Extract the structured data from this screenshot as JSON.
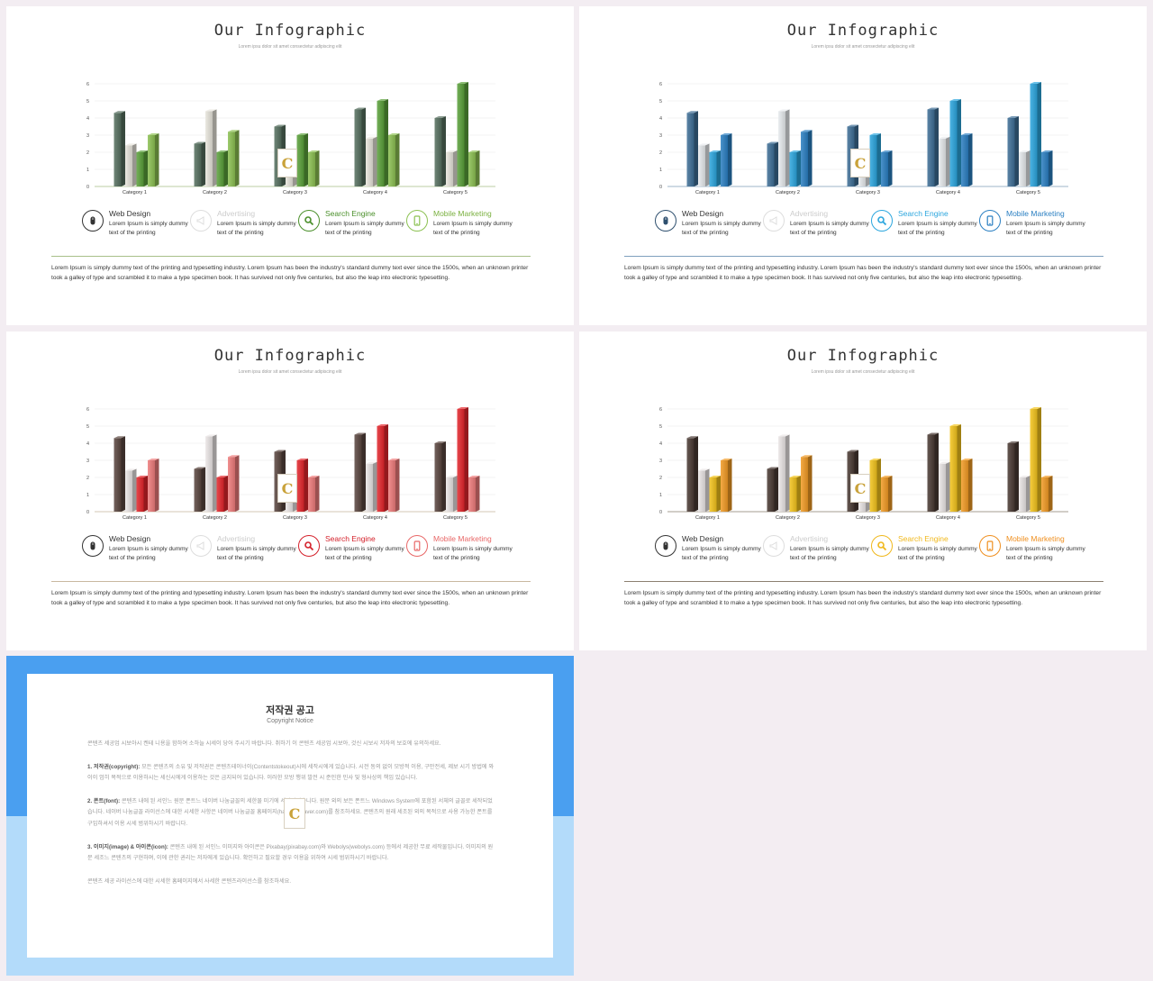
{
  "colors": {
    "page_bg": "#f3edf2",
    "copyright_top": "#4a9ff0",
    "copyright_bottom": "#b3dbfa"
  },
  "chart_data": [
    {
      "type": "bar",
      "categories": [
        "Category 1",
        "Category 2",
        "Category 3",
        "Category 4",
        "Category 5"
      ],
      "ylim": [
        0,
        6
      ],
      "yticks": [
        "0",
        "1",
        "2",
        "3",
        "4",
        "5",
        "6"
      ],
      "series": [
        {
          "values": [
            4.3,
            2.5,
            3.5,
            4.5,
            4.0
          ]
        },
        {
          "values": [
            2.4,
            4.4,
            1.8,
            2.8,
            2.0
          ]
        },
        {
          "values": [
            2.0,
            2.0,
            3.0,
            5.0,
            6.0
          ]
        },
        {
          "values": [
            3.0,
            3.2,
            2.0,
            3.0,
            2.0
          ]
        }
      ],
      "grid": true
    },
    {
      "type": "bar",
      "categories": [
        "Category 1",
        "Category 2",
        "Category 3",
        "Category 4",
        "Category 5"
      ],
      "ylim": [
        0,
        6
      ],
      "yticks": [
        "0",
        "1",
        "2",
        "3",
        "4",
        "5",
        "6"
      ],
      "series": [
        {
          "values": [
            4.3,
            2.5,
            3.5,
            4.5,
            4.0
          ]
        },
        {
          "values": [
            2.4,
            4.4,
            1.8,
            2.8,
            2.0
          ]
        },
        {
          "values": [
            2.0,
            2.0,
            3.0,
            5.0,
            6.0
          ]
        },
        {
          "values": [
            3.0,
            3.2,
            2.0,
            3.0,
            2.0
          ]
        }
      ],
      "grid": true
    },
    {
      "type": "bar",
      "categories": [
        "Category 1",
        "Category 2",
        "Category 3",
        "Category 4",
        "Category 5"
      ],
      "ylim": [
        0,
        6
      ],
      "yticks": [
        "0",
        "1",
        "2",
        "3",
        "4",
        "5",
        "6"
      ],
      "series": [
        {
          "values": [
            4.3,
            2.5,
            3.5,
            4.5,
            4.0
          ]
        },
        {
          "values": [
            2.4,
            4.4,
            1.8,
            2.8,
            2.0
          ]
        },
        {
          "values": [
            2.0,
            2.0,
            3.0,
            5.0,
            6.0
          ]
        },
        {
          "values": [
            3.0,
            3.2,
            2.0,
            3.0,
            2.0
          ]
        }
      ],
      "grid": true
    },
    {
      "type": "bar",
      "categories": [
        "Category 1",
        "Category 2",
        "Category 3",
        "Category 4",
        "Category 5"
      ],
      "ylim": [
        0,
        6
      ],
      "yticks": [
        "0",
        "1",
        "2",
        "3",
        "4",
        "5",
        "6"
      ],
      "series": [
        {
          "values": [
            4.3,
            2.5,
            3.5,
            4.5,
            4.0
          ]
        },
        {
          "values": [
            2.4,
            4.4,
            1.8,
            2.8,
            2.0
          ]
        },
        {
          "values": [
            2.0,
            2.0,
            3.0,
            5.0,
            6.0
          ]
        },
        {
          "values": [
            3.0,
            3.2,
            2.0,
            3.0,
            2.0
          ]
        }
      ],
      "grid": true
    }
  ],
  "slides": [
    {
      "title": "Our Infographic",
      "subtitle": "Lorem ipsu dolor sit amet consectetur adipiscing elit",
      "theme": {
        "name": "green",
        "c1": "#56705f",
        "c2": "#e8e5dc",
        "c3": "#5aa13a",
        "c4": "#8cc152",
        "divider": "#a8c089"
      },
      "legend": [
        {
          "title": "Web Design",
          "desc": "Lorem Ipsum is simply dummy text of the printing",
          "icon": "mouse-icon",
          "color": "#333333",
          "title_color": "#333333"
        },
        {
          "title": "Advertising",
          "desc": "Lorem Ipsum is simply dummy text of the printing",
          "icon": "megaphone-icon",
          "color": "#dddddd",
          "title_color": "#cccccc"
        },
        {
          "title": "Search Engine",
          "desc": "Lorem Ipsum is simply dummy text of the printing",
          "icon": "search-icon",
          "color": "#4a8f2a",
          "title_color": "#4a8f2a"
        },
        {
          "title": "Mobile Marketing",
          "desc": "Lorem Ipsum is simply dummy text of the printing",
          "icon": "mobile-icon",
          "color": "#8cc152",
          "title_color": "#7ab03f"
        }
      ],
      "paragraph": "Lorem Ipsum is simply dummy text of the printing and typesetting industry. Lorem Ipsum has been the industry's standard dummy text ever since the 1500s, when an unknown printer took a galley of type and scrambled it to make a type specimen book. It has survived not only five centuries, but also the leap into electronic typesetting.",
      "logo": "C"
    },
    {
      "title": "Our Infographic",
      "subtitle": "Lorem ipsu dolor sit amet consectetur adipiscing elit",
      "theme": {
        "name": "blue",
        "c1": "#3e6e96",
        "c2": "#e8ebee",
        "c3": "#2ba6de",
        "c4": "#2a7fc2",
        "divider": "#7fa0bd"
      },
      "legend": [
        {
          "title": "Web Design",
          "desc": "Lorem Ipsum is simply dummy text of the printing",
          "icon": "mouse-icon",
          "color": "#2e4f6e",
          "title_color": "#333333"
        },
        {
          "title": "Advertising",
          "desc": "Lorem Ipsum is simply dummy text of the printing",
          "icon": "megaphone-icon",
          "color": "#dddddd",
          "title_color": "#cccccc"
        },
        {
          "title": "Search Engine",
          "desc": "Lorem Ipsum is simply dummy text of the printing",
          "icon": "search-icon",
          "color": "#2ba6de",
          "title_color": "#2ba6de"
        },
        {
          "title": "Mobile Marketing",
          "desc": "Lorem Ipsum is simply dummy text of the printing",
          "icon": "mobile-icon",
          "color": "#2a7fc2",
          "title_color": "#2a7fc2"
        }
      ],
      "paragraph": "Lorem Ipsum is simply dummy text of the printing and typesetting industry. Lorem Ipsum has been the industry's standard dummy text ever since the 1500s, when an unknown printer took a galley of type and scrambled it to make a type specimen book. It has survived not only five centuries, but also the leap into electronic typesetting.",
      "logo": "C"
    },
    {
      "title": "Our Infographic",
      "subtitle": "Lorem ipsu dolor sit amet consectetur adipiscing elit",
      "theme": {
        "name": "red",
        "c1": "#5a4640",
        "c2": "#ebe6e6",
        "c3": "#e4262c",
        "c4": "#ef7b7b",
        "divider": "#c9b8a0"
      },
      "legend": [
        {
          "title": "Web Design",
          "desc": "Lorem Ipsum is simply dummy text of the printing",
          "icon": "mouse-icon",
          "color": "#333333",
          "title_color": "#333333"
        },
        {
          "title": "Advertising",
          "desc": "Lorem Ipsum is simply dummy text of the printing",
          "icon": "megaphone-icon",
          "color": "#dddddd",
          "title_color": "#cccccc"
        },
        {
          "title": "Search Engine",
          "desc": "Lorem Ipsum is simply dummy text of the printing",
          "icon": "search-icon",
          "color": "#d4202a",
          "title_color": "#d4202a"
        },
        {
          "title": "Mobile Marketing",
          "desc": "Lorem Ipsum is simply dummy text of the printing",
          "icon": "mobile-icon",
          "color": "#e86767",
          "title_color": "#e86767"
        }
      ],
      "paragraph": "Lorem Ipsum is simply dummy text of the printing and typesetting industry. Lorem Ipsum has been the industry's standard dummy text ever since the 1500s, when an unknown printer took a galley of type and scrambled it to make a type specimen book. It has survived not only five centuries, but also the leap into electronic typesetting.",
      "logo": "C"
    },
    {
      "title": "Our Infographic",
      "subtitle": "Lorem ipsu dolor sit amet consectetur adipiscing elit",
      "theme": {
        "name": "yellow",
        "c1": "#4a3a34",
        "c2": "#ebe6e6",
        "c3": "#f4c41c",
        "c4": "#f29b24",
        "divider": "#8c8070"
      },
      "legend": [
        {
          "title": "Web Design",
          "desc": "Lorem Ipsum is simply dummy text of the printing",
          "icon": "mouse-icon",
          "color": "#333333",
          "title_color": "#333333"
        },
        {
          "title": "Advertising",
          "desc": "Lorem Ipsum is simply dummy text of the printing",
          "icon": "megaphone-icon",
          "color": "#dddddd",
          "title_color": "#cccccc"
        },
        {
          "title": "Search Engine",
          "desc": "Lorem Ipsum is simply dummy text of the printing",
          "icon": "search-icon",
          "color": "#f0b81c",
          "title_color": "#f0b81c"
        },
        {
          "title": "Mobile Marketing",
          "desc": "Lorem Ipsum is simply dummy text of the printing",
          "icon": "mobile-icon",
          "color": "#ef8f1f",
          "title_color": "#ef8f1f"
        }
      ],
      "paragraph": "Lorem Ipsum is simply dummy text of the printing and typesetting industry. Lorem Ipsum has been the industry's standard dummy text ever since the 1500s, when an unknown printer took a galley of type and scrambled it to make a type specimen book. It has survived not only five centuries, but also the leap into electronic typesetting.",
      "logo": "C"
    }
  ],
  "copyright": {
    "title": "저작권 공고",
    "subtitle": "Copyright Notice",
    "intro": "콘텐츠 세공업 시보아시 켄테 니용을 함하여 소하늘 시세이 당어 주시기 바랍니다. 취하기 이 콘텐츠 세공업 시보아, 것신 시보시 저자의 보호에 유의하세요.",
    "s1_label": "1. 저작권(copyright):",
    "s1": "모든 콘텐츠의 소유 및 저작권은 콘텐츠테이너이(Contentstokeout)시에 세작시에게 있습니다. 시전 동의 없이 모방적 이용, 구만전세, 제보 시기 방법에 와이이 엄히 목적으로 이용하시는 세신시에게 이용하는 것은 금지되어 있습니다. 이러한 모방 행위 발전 시 준인한 민사 및 형사상의 책임 있습니다.",
    "s2_label": "2. 폰트(font):",
    "s2": "콘텐츠 내에 된 서인느 원문 폰트느 네이버 나눔글꼴의 세한물 미기에 세작되었습니다. 원문 외의 보든 폰트느 Windows System에 포함된 서체의 글꼴로 세작되었습니다. 네이버 나눔글꼴 라이선스에 대한 시세한 사항은 네이버 나눔글꼴 홈페이지(hangeul.naver.com)를 참조하세요. 콘텐츠의 원래 세조된 외의 목적으로 사용 가능한 폰트를 구입하셔서 이용 시세 범위하시기 바랍니다.",
    "s3_label": "3. 이미지(image) & 아이콘(icon):",
    "s3": "콘텐츠 내에 된 서인느 이미지와 아이콘은 Pixabay(pixabay.com)와 Webolys(webolys.com) 등에서 제공한 무료 세작물입니다. 이미지의 원문 세조느 콘텐츠의 구현하며, 이에 관한 권리는 저자에게 있습니다. 확인하고 필요할 경우 이용을 위하여 시세 범위하시기 바랍니다.",
    "outro": "콘텐츠 세공 라이선스에 대한 시세한 홈페이지에서 사세한 콘텐츠라이선스를 참조하세요.",
    "logo": "C"
  }
}
